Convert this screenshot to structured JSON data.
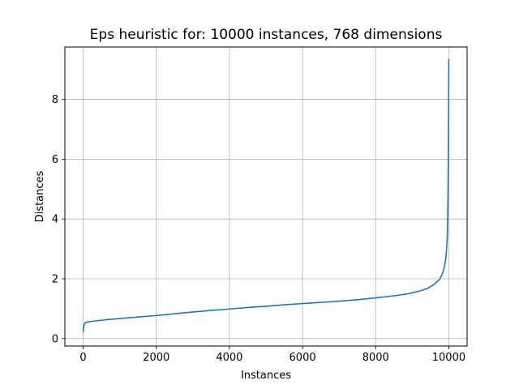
{
  "chart_data": {
    "type": "line",
    "title": "Eps heuristic for: 10000 instances, 768 dimensions",
    "xlabel": "Instances",
    "ylabel": "Distances",
    "xlim": [
      -500,
      10500
    ],
    "ylim": [
      -0.25,
      9.75
    ],
    "grid": true,
    "x_ticks": [
      0,
      2000,
      4000,
      6000,
      8000,
      10000
    ],
    "x_tick_labels": [
      "0",
      "2000",
      "4000",
      "6000",
      "8000",
      "10000"
    ],
    "y_ticks": [
      0,
      2,
      4,
      6,
      8
    ],
    "y_tick_labels": [
      "0",
      "2",
      "4",
      "6",
      "8"
    ],
    "series": [
      {
        "color": "#1f77b4",
        "x": [
          0,
          20,
          50,
          100,
          200,
          400,
          700,
          1000,
          1500,
          2000,
          2500,
          3000,
          3500,
          4000,
          4500,
          5000,
          5500,
          6000,
          6500,
          7000,
          7500,
          8000,
          8500,
          8800,
          9000,
          9200,
          9400,
          9550,
          9650,
          9750,
          9820,
          9870,
          9910,
          9940,
          9960,
          9975,
          9985,
          9992,
          9997,
          10000
        ],
        "y": [
          0.2,
          0.45,
          0.52,
          0.55,
          0.57,
          0.6,
          0.64,
          0.67,
          0.72,
          0.77,
          0.83,
          0.89,
          0.94,
          0.99,
          1.04,
          1.08,
          1.13,
          1.17,
          1.21,
          1.25,
          1.3,
          1.36,
          1.43,
          1.48,
          1.53,
          1.59,
          1.67,
          1.77,
          1.87,
          1.98,
          2.15,
          2.35,
          2.6,
          3.0,
          3.5,
          4.5,
          5.8,
          7.2,
          8.5,
          9.35
        ]
      }
    ]
  }
}
